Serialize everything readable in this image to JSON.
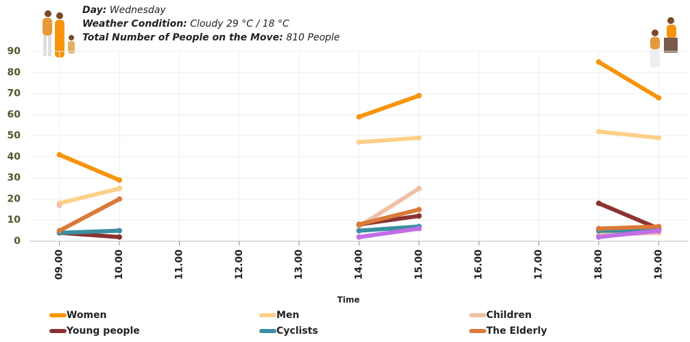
{
  "chart_data": {
    "type": "line",
    "info": [
      {
        "label": "Day:",
        "value": "Wednesday"
      },
      {
        "label": "Weather Condition:",
        "value": "Cloudy 29 °C / 18 °C"
      },
      {
        "label": "Total Number of People on the Move:",
        "value": "810 People"
      }
    ],
    "x_label": "Time",
    "categories": [
      "09.00",
      "10.00",
      "11.00",
      "12.00",
      "13.00",
      "14.00",
      "15.00",
      "16.00",
      "17.00",
      "18.00",
      "19.00"
    ],
    "series": [
      {
        "name": "Women",
        "color": "#f7940c",
        "values": [
          41,
          29,
          null,
          null,
          null,
          59,
          69,
          null,
          null,
          85,
          68
        ]
      },
      {
        "name": "Men",
        "color": "#fdd08a",
        "values": [
          18,
          25,
          null,
          null,
          null,
          47,
          49,
          null,
          null,
          52,
          49
        ]
      },
      {
        "name": "Children",
        "color": "#f0bfa8",
        "values": [
          17,
          null,
          null,
          null,
          null,
          7,
          25,
          null,
          null,
          3,
          4
        ]
      },
      {
        "name": "Young people",
        "color": "#8b3232",
        "values": [
          4,
          2,
          null,
          null,
          null,
          8,
          12,
          null,
          null,
          18,
          6
        ]
      },
      {
        "name": "Cyclists",
        "color": "#3a8fa0",
        "values": [
          4,
          5,
          null,
          null,
          null,
          5,
          7,
          null,
          null,
          5,
          5
        ]
      },
      {
        "name": "The Elderly",
        "color": "#da7a3a",
        "values": [
          5,
          20,
          null,
          null,
          null,
          8,
          15,
          null,
          null,
          6,
          7
        ]
      },
      {
        "color": "#c26de8",
        "values": [
          null,
          null,
          null,
          null,
          null,
          2,
          6,
          null,
          null,
          2,
          5
        ]
      }
    ],
    "ylim": [
      0,
      90
    ],
    "yticks": [
      0,
      10,
      20,
      30,
      40,
      50,
      60,
      70,
      80,
      90
    ],
    "grid": true
  }
}
